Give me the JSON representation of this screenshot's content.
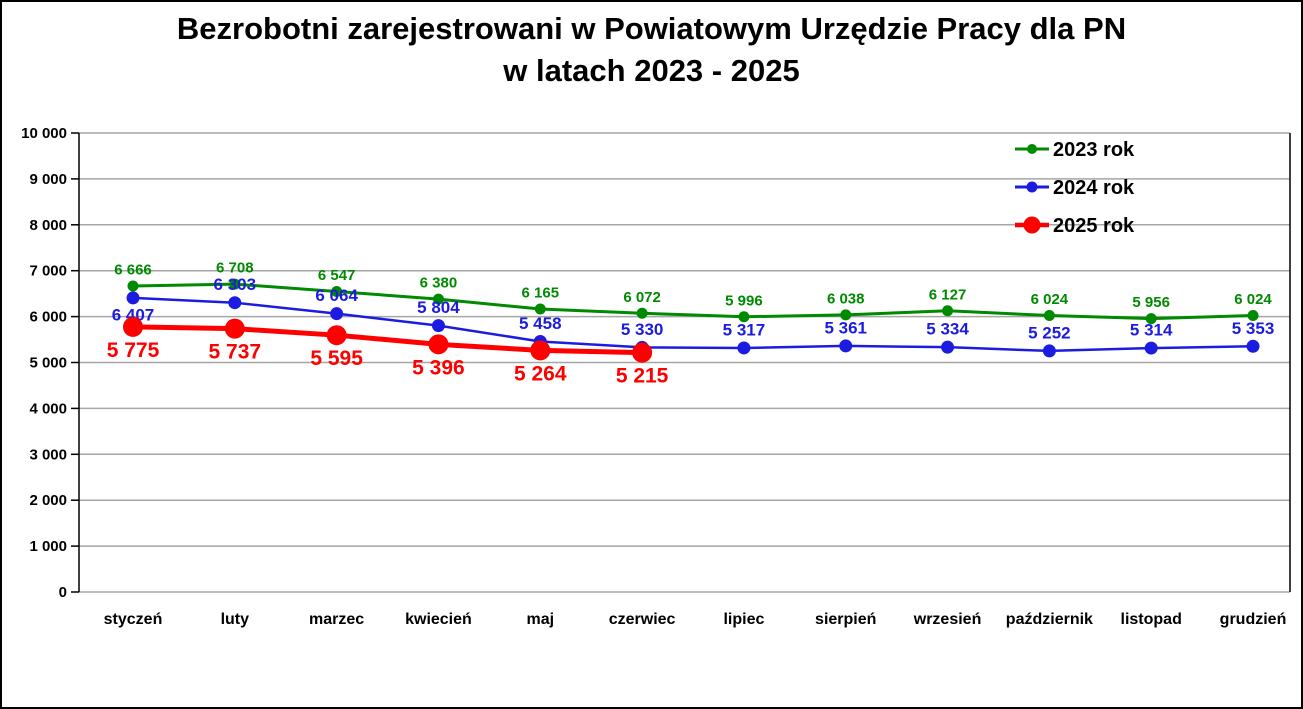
{
  "title": {
    "line1": "Bezrobotni zarejestrowani w Powiatowym Urzędzie Pracy dla PN",
    "line2": "w latach 2023 - 2025"
  },
  "chart_data": {
    "type": "line",
    "title": "Bezrobotni zarejestrowani w Powiatowym Urzędzie Pracy dla PN w latach 2023 - 2025",
    "title_lines": [
      "Bezrobotni zarejestrowani w Powiatowym Urzędzie Pracy dla PN",
      "w latach 2023 - 2025"
    ],
    "categories": [
      "styczeń",
      "luty",
      "marzec",
      "kwiecień",
      "maj",
      "czerwiec",
      "lipiec",
      "sierpień",
      "wrzesień",
      "październik",
      "listopad",
      "grudzień"
    ],
    "series": [
      {
        "name": "2023 rok",
        "color": "#008a00",
        "values": [
          6666,
          6708,
          6547,
          6380,
          6165,
          6072,
          5996,
          6038,
          6127,
          6024,
          5956,
          6024
        ],
        "labels": [
          "6 666",
          "6 708",
          "6 547",
          "6 380",
          "6 165",
          "6 072",
          "5 996",
          "6 038",
          "6 127",
          "6 024",
          "5 956",
          "6 024"
        ],
        "label_side": "above",
        "line_width": 3,
        "marker_radius": 5.5,
        "label_font_size": 15
      },
      {
        "name": "2024 rok",
        "color": "#1c1ce0",
        "values": [
          6407,
          6303,
          6064,
          5804,
          5458,
          5330,
          5317,
          5361,
          5334,
          5252,
          5314,
          5353
        ],
        "labels": [
          "6 407",
          "6 303",
          "6 064",
          "5 804",
          "5 458",
          "5 330",
          "5 317",
          "5 361",
          "5 334",
          "5 252",
          "5 314",
          "5 353"
        ],
        "label_side": "above",
        "label_side_overrides": {
          "0": "below"
        },
        "line_width": 2.5,
        "marker_radius": 6.5,
        "label_font_size": 17
      },
      {
        "name": "2025 rok",
        "color": "#fe0000",
        "values": [
          5775,
          5737,
          5595,
          5396,
          5264,
          5215
        ],
        "labels": [
          "5 775",
          "5 737",
          "5 595",
          "5 396",
          "5 264",
          "5 215"
        ],
        "label_side": "below",
        "line_width": 5,
        "marker_radius": 10,
        "label_font_size": 21
      }
    ],
    "ylim": [
      0,
      10000
    ],
    "ytick_step": 1000,
    "ytick_labels": [
      "0",
      "1 000",
      "2 000",
      "3 000",
      "4 000",
      "5 000",
      "6 000",
      "7 000",
      "8 000",
      "9 000",
      "10 000"
    ],
    "xlabel": "",
    "ylabel": "",
    "grid": true,
    "grid_color": "#a6a6a6",
    "axis_color": "#000000",
    "legend_position": "top-right"
  }
}
